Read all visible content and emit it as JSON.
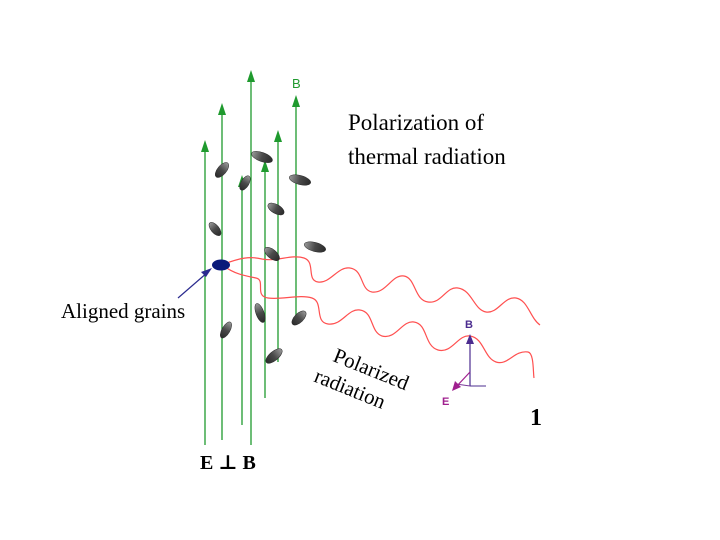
{
  "title_lines": [
    "Polarization of",
    "thermal radiation"
  ],
  "aligned_grains_label": "Aligned grains",
  "polarized_label_lines": [
    "Polarized",
    "radiation"
  ],
  "field_label_b": "B",
  "vector_label_b": "B",
  "vector_label_e": "E",
  "relation_label": "E ⊥ B",
  "corner_glyph": "1",
  "colors": {
    "field_lines": "#1f9a2e",
    "radiation": "#ff5050",
    "grain": "#555555",
    "aligned_grain": "#0a1a7a",
    "pointer": "#2b2b8f",
    "vector_b": "#4b2c8f",
    "vector_e": "#a0208f",
    "text": "#000000"
  }
}
